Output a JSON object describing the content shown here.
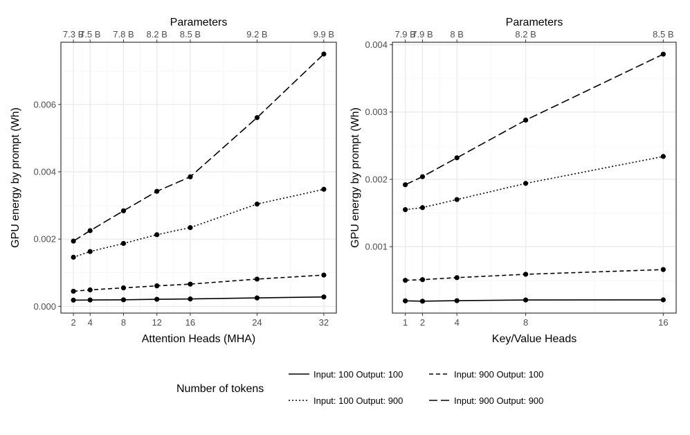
{
  "chart_data": [
    {
      "type": "line",
      "xlabel": "Attention Heads (MHA)",
      "ylabel": "GPU energy by prompt (Wh)",
      "x2label": "Parameters",
      "x": [
        2,
        4,
        8,
        12,
        16,
        24,
        32
      ],
      "x_ticks": [
        "2",
        "4",
        "8",
        "12",
        "16",
        "24",
        "32"
      ],
      "x2_ticks": [
        "7.3 B",
        "7.5 B",
        "7.8 B",
        "8.2 B",
        "8.5 B",
        "9.2 B",
        "9.9 B"
      ],
      "xlim": [
        0.5,
        33.5
      ],
      "y_ticks": [
        {
          "value": 0,
          "label": "0.000"
        },
        {
          "value": 0.002,
          "label": "0.002"
        },
        {
          "value": 0.004,
          "label": "0.004"
        },
        {
          "value": 0.006,
          "label": "0.006"
        }
      ],
      "ylim": [
        -0.0002,
        0.00785
      ],
      "grid": true,
      "series": [
        {
          "name": "Input: 100 Output: 100",
          "dash": "solid",
          "values": [
            0.000185,
            0.00019,
            0.000195,
            0.00021,
            0.00022,
            0.00025,
            0.00028
          ]
        },
        {
          "name": "Input: 100 Output: 900",
          "dash": "dotted",
          "values": [
            0.00146,
            0.00163,
            0.00187,
            0.00213,
            0.00234,
            0.00304,
            0.00348
          ]
        },
        {
          "name": "Input: 900 Output: 100",
          "dash": "dashed",
          "values": [
            0.00045,
            0.00049,
            0.00055,
            0.00061,
            0.00066,
            0.00081,
            0.00093
          ]
        },
        {
          "name": "Input: 900 Output: 900",
          "dash": "longdash",
          "values": [
            0.00194,
            0.00225,
            0.00284,
            0.00342,
            0.00385,
            0.00561,
            0.0075
          ]
        }
      ]
    },
    {
      "type": "line",
      "xlabel": "Key/Value Heads",
      "ylabel": "GPU energy by prompt (Wh)",
      "x2label": "Parameters",
      "x": [
        1,
        2,
        4,
        8,
        16
      ],
      "x_ticks": [
        "1",
        "2",
        "4",
        "8",
        "16"
      ],
      "x2_ticks": [
        "7.9 B",
        "7.9 B",
        "8 B",
        "8.2 B",
        "8.5 B"
      ],
      "xlim": [
        0.25,
        16.75
      ],
      "y_ticks": [
        {
          "value": 0.001,
          "label": "0.001"
        },
        {
          "value": 0.002,
          "label": "0.002"
        },
        {
          "value": 0.003,
          "label": "0.003"
        },
        {
          "value": 0.004,
          "label": "0.004"
        }
      ],
      "ylim": [
        1.33e-05,
        0.0040367
      ],
      "grid": true,
      "series": [
        {
          "name": "Input: 100 Output: 100",
          "dash": "solid",
          "values": [
            0.000195,
            0.00019,
            0.000198,
            0.000208,
            0.00021
          ]
        },
        {
          "name": "Input: 100 Output: 900",
          "dash": "dotted",
          "values": [
            0.00155,
            0.00158,
            0.0017,
            0.00194,
            0.00234
          ]
        },
        {
          "name": "Input: 900 Output: 100",
          "dash": "dashed",
          "values": [
            0.0005,
            0.00051,
            0.00054,
            0.00059,
            0.00066
          ]
        },
        {
          "name": "Input: 900 Output: 900",
          "dash": "longdash",
          "values": [
            0.00192,
            0.00204,
            0.00232,
            0.00288,
            0.00386
          ]
        }
      ]
    }
  ],
  "legend": {
    "title": "Number of tokens",
    "position": "bottom",
    "entries": [
      {
        "label": "Input: 100 Output: 100",
        "dash": "solid"
      },
      {
        "label": "Input: 900 Output: 100",
        "dash": "dashed"
      },
      {
        "label": "Input: 100 Output: 900",
        "dash": "dotted"
      },
      {
        "label": "Input: 900 Output: 900",
        "dash": "longdash"
      }
    ]
  },
  "colors": {
    "line": "#000000",
    "panel_border": "#333333",
    "grid_major": "#ebebeb",
    "grid_minor": "#f5f5f5",
    "tick_text": "#4d4d4d"
  }
}
